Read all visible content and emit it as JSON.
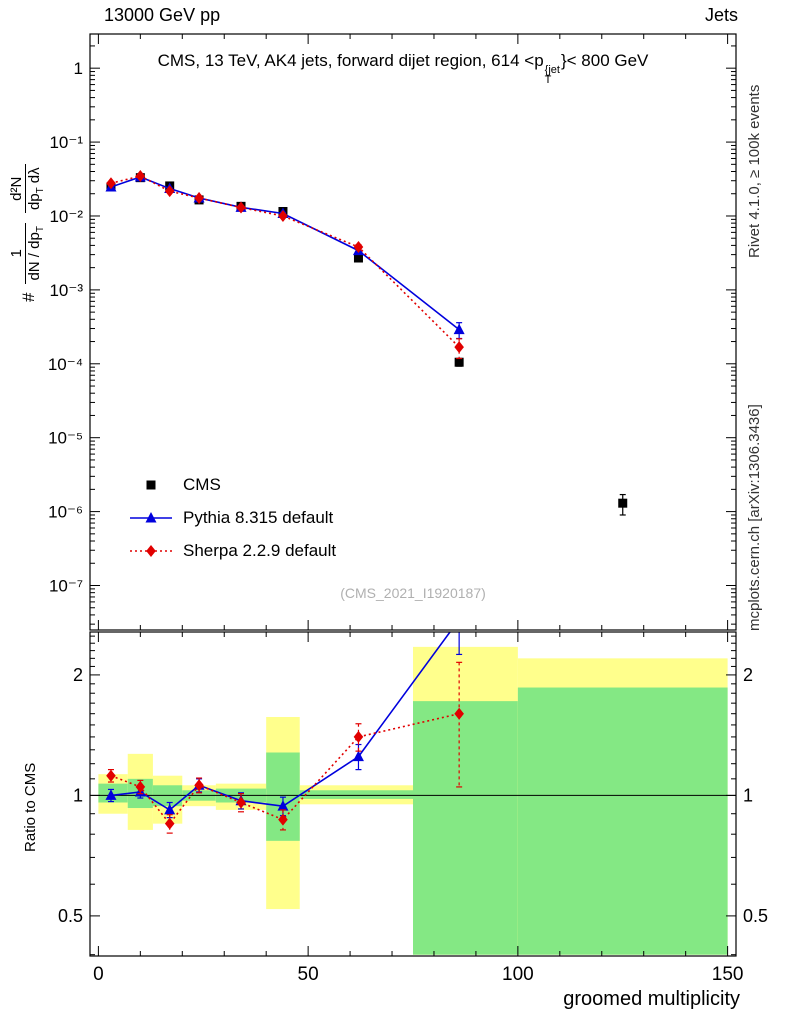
{
  "header": {
    "left": "13000 GeV pp",
    "right": "Jets"
  },
  "title": {
    "pre": "CMS, 13 TeV, AK4 jets, forward dijet region, 614 <p",
    "sup": "{jet",
    "sub": "T",
    "post": "}< 800 GeV"
  },
  "ylabel": {
    "prefix": "#",
    "frac1_num": "1",
    "frac1_den_main": "dN / dp",
    "frac1_den_sub": "T",
    "frac2_num": "d²N",
    "frac2_den_a": "dp",
    "frac2_den_a_sub": "T",
    "frac2_den_b": "dλ"
  },
  "side_notes": {
    "top": "Rivet 4.1.0, ≥ 100k events",
    "bottom": "mcplots.cern.ch [arXiv:1306.3436]"
  },
  "watermark": "(CMS_2021_I1920187)",
  "legend": [
    {
      "label": "CMS",
      "marker": "square",
      "color": "#000000",
      "line": "none"
    },
    {
      "label": "Pythia 8.315 default",
      "marker": "triangle",
      "color": "#0000dd",
      "line": "solid"
    },
    {
      "label": "Sherpa 2.2.9 default",
      "marker": "diamond",
      "color": "#e10000",
      "line": "dotted"
    }
  ],
  "chart_data": {
    "type": "scatter",
    "title": "CMS, 13 TeV, AK4 jets, forward dijet region, 614 < pT^jet < 800 GeV",
    "xlabel": "groomed multiplicity",
    "xlim": [
      0,
      150
    ],
    "x_major_ticks": [
      0,
      50,
      100,
      150
    ],
    "x_minor_step": 10,
    "x": [
      3,
      10,
      17,
      24,
      34,
      44,
      62,
      86,
      125
    ],
    "colors": {
      "cms": "#000000",
      "pythia": "#0000dd",
      "sherpa": "#e10000",
      "band_yellow": "#ffff8c",
      "band_green": "#84e884"
    },
    "main_panel": {
      "ylog": true,
      "yrange": [
        2.5e-08,
        2.9
      ],
      "yticks": [
        {
          "v": 1,
          "label": "1"
        },
        {
          "v": 0.1,
          "label": "10⁻¹"
        },
        {
          "v": 0.01,
          "label": "10⁻²"
        },
        {
          "v": 0.001,
          "label": "10⁻³"
        },
        {
          "v": 0.0001,
          "label": "10⁻⁴"
        },
        {
          "v": 1e-05,
          "label": "10⁻⁵"
        },
        {
          "v": 1e-06,
          "label": "10⁻⁶"
        },
        {
          "v": 1e-07,
          "label": "10⁻⁷"
        }
      ],
      "series": [
        {
          "name": "CMS",
          "color": "#000000",
          "marker": "square",
          "line": "none",
          "values": [
            0.0247,
            0.033,
            0.0255,
            0.0165,
            0.0135,
            0.0115,
            0.0027,
            0.000105,
            1.3e-06
          ],
          "errors": [
            0.0012,
            0.0015,
            0.0012,
            0.0008,
            0.0007,
            0.0006,
            0.00018,
            1.2e-05,
            4e-07
          ]
        },
        {
          "name": "Pythia 8.315 default",
          "color": "#0000dd",
          "marker": "triangle",
          "line": "solid",
          "values": [
            0.0247,
            0.0337,
            0.0235,
            0.0175,
            0.0131,
            0.0108,
            0.0034,
            0.00029,
            null
          ],
          "errors": [
            0.0007,
            0.0009,
            0.0007,
            0.0005,
            0.0004,
            0.0004,
            0.00025,
            7e-05,
            null
          ]
        },
        {
          "name": "Sherpa 2.2.9 default",
          "color": "#e10000",
          "marker": "diamond",
          "line": "dotted",
          "values": [
            0.0277,
            0.0347,
            0.0217,
            0.0175,
            0.013,
            0.01,
            0.0038,
            0.000168,
            null
          ],
          "errors": [
            0.0008,
            0.001,
            0.0008,
            0.0006,
            0.0005,
            0.0004,
            0.0003,
            5e-05,
            null
          ]
        }
      ]
    },
    "ratio_panel": {
      "ylabel": "Ratio to CMS",
      "ylog": true,
      "yrange": [
        0.397,
        2.56
      ],
      "yticks": [
        {
          "v": 0.5,
          "label": "0.5"
        },
        {
          "v": 1,
          "label": "1"
        },
        {
          "v": 2,
          "label": "2"
        }
      ],
      "reference": 1,
      "bands": [
        {
          "x1": 0,
          "x2": 7,
          "yellow": [
            0.9,
            1.13
          ],
          "green": [
            0.96,
            1.07
          ]
        },
        {
          "x1": 7,
          "x2": 13,
          "yellow": [
            0.82,
            1.27
          ],
          "green": [
            0.93,
            1.1
          ]
        },
        {
          "x1": 13,
          "x2": 20,
          "yellow": [
            0.85,
            1.12
          ],
          "green": [
            0.94,
            1.06
          ]
        },
        {
          "x1": 20,
          "x2": 28,
          "yellow": [
            0.94,
            1.06
          ],
          "green": [
            0.97,
            1.03
          ]
        },
        {
          "x1": 28,
          "x2": 40,
          "yellow": [
            0.92,
            1.07
          ],
          "green": [
            0.96,
            1.04
          ]
        },
        {
          "x1": 40,
          "x2": 48,
          "yellow": [
            0.52,
            1.57
          ],
          "green": [
            0.77,
            1.28
          ]
        },
        {
          "x1": 48,
          "x2": 75,
          "yellow": [
            0.95,
            1.06
          ],
          "green": [
            0.98,
            1.03
          ]
        },
        {
          "x1": 75,
          "x2": 100,
          "yellow": [
            0.4,
            2.35
          ],
          "green": [
            0.4,
            1.72
          ]
        },
        {
          "x1": 100,
          "x2": 150,
          "yellow": [
            0.4,
            2.2
          ],
          "green": [
            0.4,
            1.86
          ]
        }
      ],
      "series": [
        {
          "name": "Pythia 8.315 default",
          "color": "#0000dd",
          "marker": "triangle",
          "line": "solid",
          "values": [
            1.0,
            1.02,
            0.92,
            1.06,
            0.97,
            0.94,
            1.25,
            2.75,
            null
          ],
          "errors": [
            0.035,
            0.035,
            0.04,
            0.04,
            0.045,
            0.05,
            0.09,
            0.5,
            null
          ]
        },
        {
          "name": "Sherpa 2.2.9 default",
          "color": "#e10000",
          "marker": "diamond",
          "line": "dotted",
          "values": [
            1.12,
            1.05,
            0.85,
            1.06,
            0.96,
            0.87,
            1.4,
            1.6,
            null
          ],
          "errors": [
            0.04,
            0.04,
            0.045,
            0.045,
            0.05,
            0.05,
            0.11,
            0.55,
            null
          ]
        }
      ]
    }
  }
}
